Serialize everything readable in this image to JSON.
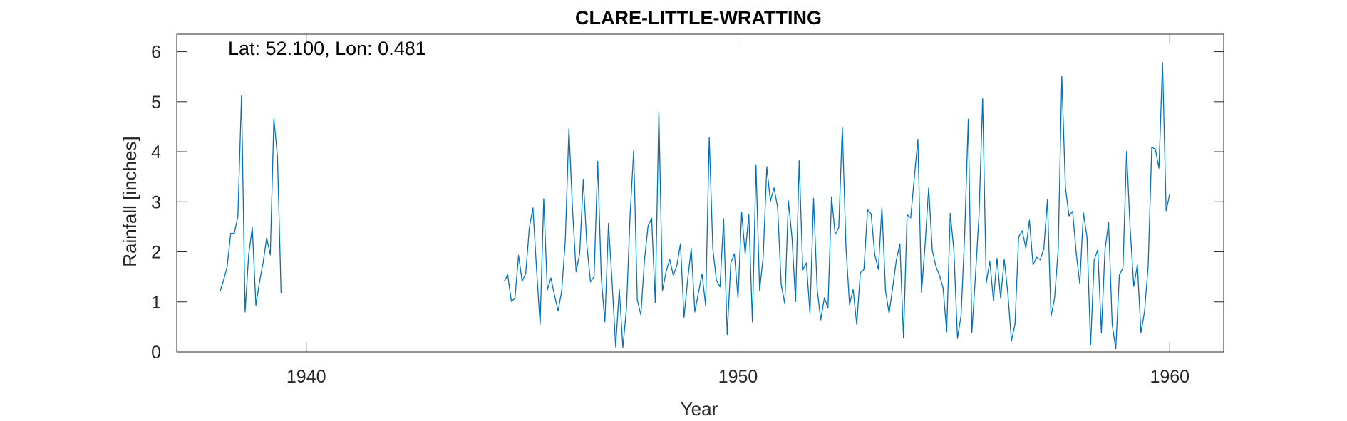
{
  "chart_data": {
    "type": "line",
    "title": "CLARE-LITTLE-WRATTING",
    "annotation": "Lat: 52.100, Lon: 0.481",
    "xlabel": "Year",
    "ylabel": "Rainfall [inches]",
    "xlim": [
      1937,
      1961.25
    ],
    "ylim": [
      0,
      6.35
    ],
    "xticks": [
      1940,
      1950,
      1960
    ],
    "yticks": [
      0,
      1,
      2,
      3,
      4,
      5,
      6
    ],
    "grid": false,
    "line_color": "#0072bd",
    "series": [
      {
        "start_year": 1938.0,
        "step_years": 0.0833333,
        "values": [
          1.2,
          1.43,
          1.7,
          2.37,
          2.37,
          2.71,
          5.12,
          0.8,
          1.95,
          2.49,
          0.93,
          1.4,
          1.78,
          2.28,
          1.94,
          4.66,
          3.9,
          1.17
        ]
      },
      {
        "start_year": 1944.5833,
        "step_years": 0.0833333,
        "values": [
          1.41,
          1.54,
          1.01,
          1.07,
          1.93,
          1.41,
          1.57,
          2.48,
          2.88,
          1.66,
          0.55,
          3.06,
          1.24,
          1.48,
          1.13,
          0.82,
          1.22,
          2.23,
          4.46,
          2.86,
          1.6,
          1.97,
          3.45,
          2.13,
          1.4,
          1.5,
          3.81,
          1.48,
          0.6,
          2.57,
          1.4,
          0.1,
          1.26,
          0.09,
          0.87,
          2.72,
          4.02,
          1.04,
          0.74,
          1.83,
          2.52,
          2.67,
          0.99,
          4.79,
          1.22,
          1.6,
          1.85,
          1.53,
          1.72,
          2.16,
          0.69,
          1.44,
          2.07,
          0.8,
          1.18,
          1.56,
          0.93,
          4.29,
          2.06,
          1.43,
          1.3,
          2.66,
          0.35,
          1.78,
          1.96,
          1.07,
          2.79,
          1.96,
          2.75,
          0.6,
          3.73,
          1.23,
          1.9,
          3.7,
          3.01,
          3.28,
          2.89,
          1.35,
          0.96,
          3.02,
          2.29,
          1.01,
          3.82,
          1.64,
          1.78,
          0.77,
          3.07,
          1.25,
          0.64,
          1.08,
          0.88,
          3.1,
          2.35,
          2.48,
          4.49,
          2.11,
          0.94,
          1.25,
          0.55,
          1.58,
          1.65,
          2.84,
          2.76,
          1.95,
          1.65,
          2.89,
          1.22,
          0.77,
          1.29,
          1.83,
          2.16,
          0.28,
          2.74,
          2.68,
          3.48,
          4.25,
          1.19,
          2.14,
          3.28,
          2.03,
          1.71,
          1.53,
          1.28,
          0.4,
          2.77,
          2.03,
          0.27,
          0.73,
          2.33,
          4.65,
          0.39,
          1.52,
          2.75,
          5.06,
          1.38,
          1.81,
          1.03,
          1.87,
          1.07,
          1.85,
          1.17,
          0.22,
          0.56,
          2.3,
          2.42,
          2.07,
          2.63,
          1.74,
          1.89,
          1.84,
          2.06,
          3.04,
          0.71,
          1.08,
          2.05,
          5.51,
          3.29,
          2.72,
          2.81,
          1.98,
          1.36,
          2.78,
          2.3,
          0.14,
          1.84,
          2.04,
          0.38,
          2.04,
          2.59,
          0.55,
          0.06,
          1.54,
          1.68,
          4.01,
          2.45,
          1.31,
          1.74,
          0.38,
          0.81,
          1.72,
          4.09,
          4.05,
          3.67,
          5.78,
          2.82,
          3.16
        ]
      }
    ]
  }
}
